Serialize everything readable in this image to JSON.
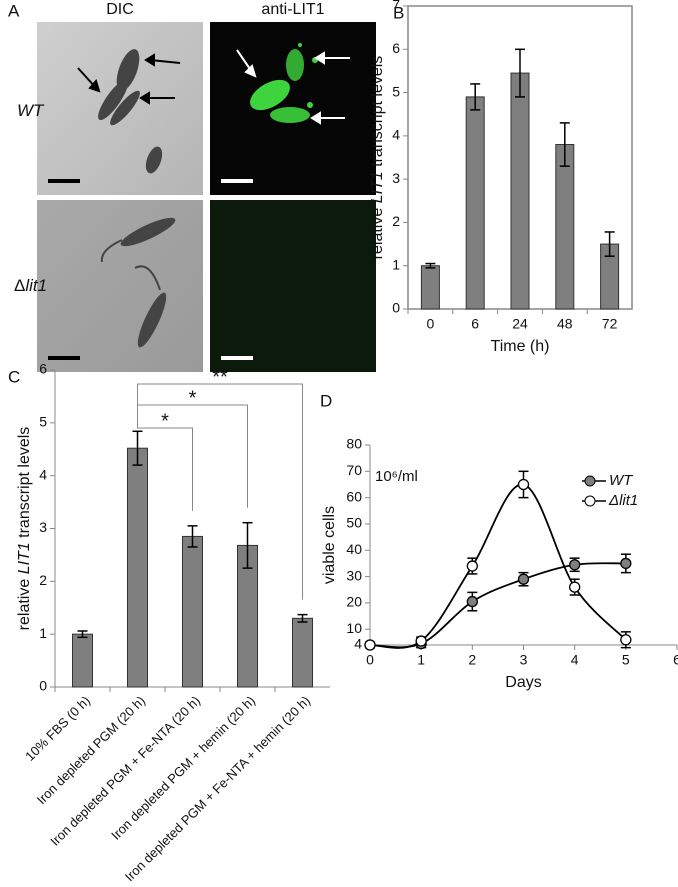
{
  "panel_a": {
    "label": "A",
    "columns": [
      "DIC",
      "anti-LIT1"
    ],
    "rows": [
      [
        {
          "text": "WT",
          "italic": true
        }
      ],
      [
        {
          "text": "Δ"
        },
        {
          "text": "lit1",
          "italic": true
        }
      ]
    ]
  },
  "chart_data": [
    {
      "type": "bar",
      "panel": "B",
      "categories": [
        "0",
        "6",
        "24",
        "48",
        "72"
      ],
      "values": [
        1.0,
        4.9,
        5.45,
        3.8,
        1.5
      ],
      "errors": [
        0.05,
        0.3,
        0.55,
        0.5,
        0.28
      ],
      "color": "#7f7f7f",
      "ylim": [
        0,
        7
      ],
      "yticks": [
        0,
        1,
        2,
        3,
        4,
        5,
        6,
        7
      ],
      "xlabel": "Time (h)",
      "ylabel": [
        {
          "text": "relative "
        },
        {
          "text": "LIT1",
          "italic": true
        },
        {
          "text": " transcript levels"
        }
      ],
      "frame": true
    },
    {
      "type": "bar",
      "panel": "C",
      "categories": [
        "10% FBS (0 h)",
        "Iron depleted PGM (20 h)",
        "Iron depleted PGM + Fe-NTA (20 h)",
        "Iron depleted PGM + hemin (20 h)",
        "Iron depleted PGM + Fe-NTA + hemin (20 h)"
      ],
      "values": [
        1.0,
        4.52,
        2.85,
        2.68,
        1.3
      ],
      "errors": [
        0.06,
        0.32,
        0.2,
        0.43,
        0.07
      ],
      "color": "#7f7f7f",
      "ylim": [
        0,
        6
      ],
      "yticks": [
        0,
        1,
        2,
        3,
        4,
        5,
        6
      ],
      "ylabel": [
        {
          "text": "relative "
        },
        {
          "text": "LIT1",
          "italic": true
        },
        {
          "text": " transcript levels"
        }
      ],
      "annotations": [
        "*",
        "*",
        "**"
      ],
      "frame": false
    },
    {
      "type": "line",
      "panel": "D",
      "x": [
        0,
        1,
        2,
        3,
        4,
        5
      ],
      "xlim": [
        0,
        6
      ],
      "xticks": [
        0,
        1,
        2,
        3,
        4,
        5,
        6
      ],
      "ylim": [
        4,
        80
      ],
      "yticks": [
        4,
        10,
        20,
        30,
        40,
        50,
        60,
        70,
        80
      ],
      "xlabel": "Days",
      "ylabel": "viable cells",
      "unit": "10⁶/ml",
      "legend": "top-right",
      "series": [
        {
          "name": "WT",
          "color": "#7f7f7f",
          "values": [
            4,
            4.5,
            20.5,
            29,
            34.5,
            35
          ],
          "errors": [
            1,
            1.5,
            3.5,
            2.5,
            2.5,
            3.5
          ]
        },
        {
          "name": "Δlit1",
          "color": "#ffffff",
          "values": [
            4,
            5.5,
            34,
            65,
            26,
            6
          ],
          "errors": [
            1,
            1.5,
            3,
            5,
            3,
            3
          ]
        }
      ]
    }
  ]
}
